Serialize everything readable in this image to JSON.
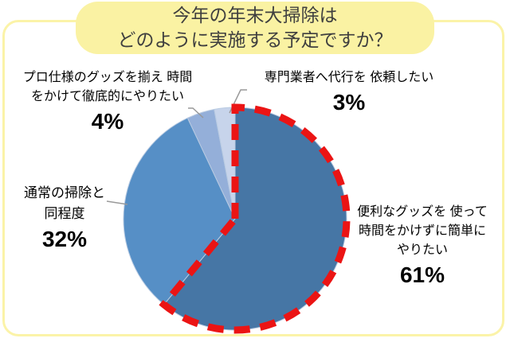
{
  "title": {
    "line1": "今年の年末大掃除は",
    "line2": "どのように実施する予定ですか？"
  },
  "chart_data": {
    "type": "pie",
    "title": "今年の年末大掃除はどのように実施する予定ですか？",
    "unit": "%",
    "direction": "clockwise",
    "start_angle_deg": 0,
    "legend": "none",
    "categories": [
      "便利なグッズを使って時間をかけずに簡単にやりたい",
      "通常の掃除と同程度",
      "プロ仕様のグッズを揃え時間をかけて徹底的にやりたい",
      "専門業者へ代行を依頼したい"
    ],
    "values": [
      61,
      32,
      4,
      3
    ],
    "segments": [
      {
        "label": "便利なグッズを使って時間をかけずに簡単にやりたい",
        "value": 61,
        "color": "#4676A5",
        "highlighted": true
      },
      {
        "label": "通常の掃除と同程度",
        "value": 32,
        "color": "#568FC6",
        "highlighted": false
      },
      {
        "label": "プロ仕様のグッズを揃え時間をかけて徹底的にやりたい",
        "value": 4,
        "color": "#94AFD9",
        "highlighted": false
      },
      {
        "label": "専門業者へ代行を依頼したい",
        "value": 3,
        "color": "#C7D4EB",
        "highlighted": false
      }
    ],
    "highlight_stroke": "#EB1414",
    "slice_border_color": "#B9CBE2",
    "leader_line_color": "#999999"
  },
  "callouts": {
    "pro": {
      "lines": [
        "プロ仕様のグッズを揃え 時間",
        "をかけて徹底的にやりたい"
      ],
      "percent": "4%"
    },
    "outsource": {
      "lines": [
        "専門業者へ代行を 依頼したい"
      ],
      "percent": "3%"
    },
    "normal": {
      "lines": [
        "通常の掃除と",
        "同程度"
      ],
      "percent": "32%"
    },
    "convenient": {
      "lines": [
        "便利なグッズを 使って",
        "時間をかけずに簡単に",
        "やりたい"
      ],
      "percent": "61%"
    }
  },
  "colors": {
    "frame_border": "#FBF3A8",
    "title_bg": "#FAF2A3",
    "title_text": "#3F3F3F"
  }
}
